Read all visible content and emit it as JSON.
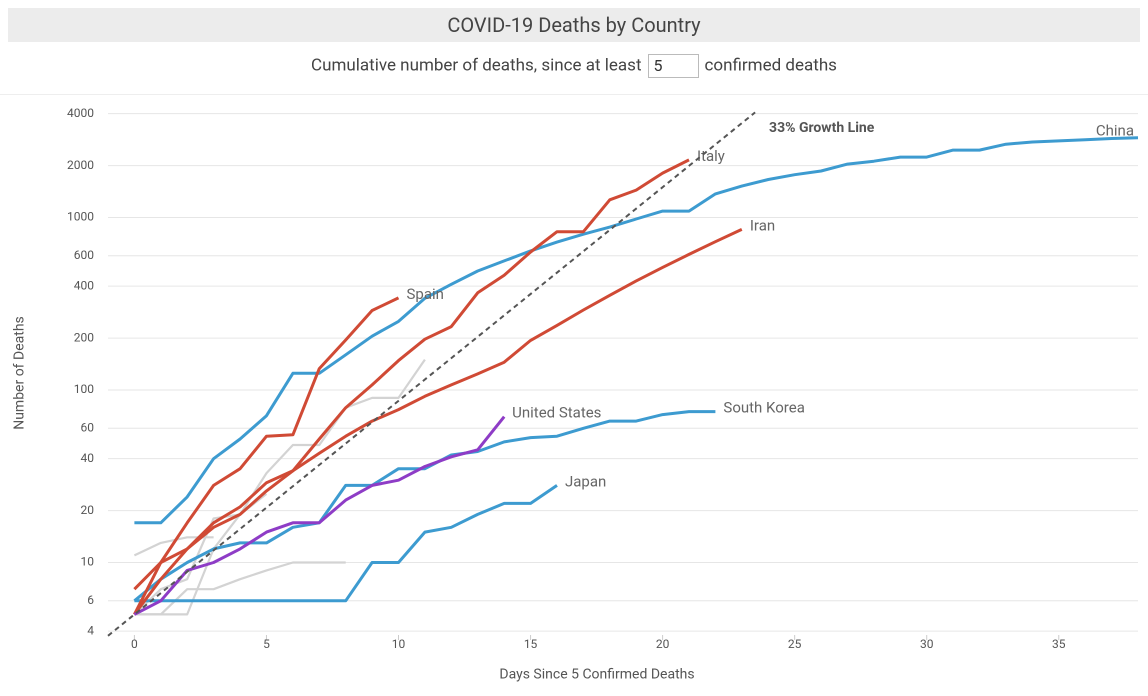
{
  "chart_data": {
    "type": "line",
    "title": "COVID-19 Deaths by Country",
    "subtitle_prefix": "Cumulative number of deaths, since at least",
    "threshold": 5,
    "subtitle_suffix": "confirmed deaths",
    "x_label": "Days Since 5 Confirmed Deaths",
    "y_label": "Number of Deaths",
    "log_y": true,
    "grid": true,
    "xlim": [
      -1,
      38
    ],
    "xticks": [
      0,
      5,
      10,
      15,
      20,
      25,
      30,
      35
    ],
    "ylim": [
      3.8,
      4200
    ],
    "yticks": [
      4,
      6,
      10,
      20,
      40,
      60,
      100,
      200,
      400,
      600,
      1000,
      2000,
      4000
    ],
    "reference_line": {
      "label": "33% Growth Line",
      "color": "#555555",
      "x": [
        -1,
        23.5
      ],
      "values": [
        3.76,
        4070
      ]
    },
    "series": [
      {
        "color": "#d3d3d3",
        "x": [
          0,
          1,
          2,
          3
        ],
        "values": [
          11,
          13,
          14,
          14
        ]
      },
      {
        "color": "#d3d3d3",
        "x": [
          0,
          1,
          2,
          3,
          4,
          5,
          6,
          7,
          8
        ],
        "values": [
          5,
          5,
          7,
          7,
          8,
          9,
          10,
          10,
          10
        ]
      },
      {
        "color": "#d3d3d3",
        "x": [
          0,
          1,
          2,
          3,
          4,
          5,
          6,
          7,
          8,
          9,
          10,
          11
        ],
        "values": [
          5,
          7,
          8,
          18,
          19,
          33,
          48,
          48,
          79,
          90,
          90,
          150
        ]
      },
      {
        "color": "#d3d3d3",
        "x": [
          0,
          1,
          2,
          3,
          4,
          5
        ],
        "values": [
          5,
          5,
          5,
          12,
          19,
          25
        ]
      },
      {
        "name": "China",
        "color": "#3d9bd0",
        "x": [
          0,
          1,
          2,
          3,
          4,
          5,
          6,
          7,
          8,
          9,
          10,
          11,
          12,
          13,
          14,
          15,
          16,
          17,
          18,
          19,
          20,
          21,
          22,
          23,
          24,
          25,
          26,
          27,
          28,
          29,
          30,
          31,
          32,
          33,
          34,
          35,
          36,
          37,
          38
        ],
        "values": [
          17,
          17,
          24,
          40,
          52,
          71,
          125,
          125,
          160,
          205,
          250,
          340,
          410,
          490,
          560,
          640,
          720,
          800,
          880,
          980,
          1090,
          1090,
          1370,
          1520,
          1660,
          1770,
          1860,
          2040,
          2120,
          2240,
          2240,
          2460,
          2460,
          2660,
          2740,
          2780,
          2820,
          2870,
          2900
        ]
      },
      {
        "name": "South Korea",
        "color": "#3d9bd0",
        "x": [
          0,
          1,
          2,
          3,
          4,
          5,
          6,
          7,
          8,
          9,
          10,
          11,
          12,
          13,
          14,
          15,
          16,
          17,
          18,
          19,
          20,
          21,
          22
        ],
        "values": [
          6,
          8,
          10,
          12,
          13,
          13,
          16,
          17,
          28,
          28,
          35,
          35,
          42,
          44,
          50,
          53,
          54,
          60,
          66,
          66,
          72,
          75,
          75
        ]
      },
      {
        "name": "Japan",
        "color": "#3d9bd0",
        "x": [
          0,
          1,
          2,
          3,
          4,
          5,
          6,
          7,
          8,
          9,
          10,
          11,
          12,
          13,
          14,
          15,
          16
        ],
        "values": [
          6,
          6,
          6,
          6,
          6,
          6,
          6,
          6,
          6,
          10,
          10,
          15,
          16,
          19,
          22,
          22,
          28
        ]
      },
      {
        "name": "Iran",
        "color": "#d04a35",
        "x": [
          0,
          1,
          2,
          3,
          4,
          5,
          6,
          7,
          8,
          9,
          10,
          11,
          12,
          13,
          14,
          15,
          16,
          17,
          18,
          19,
          20,
          21,
          22,
          23
        ],
        "values": [
          5,
          8,
          12,
          16,
          19,
          26,
          34,
          43,
          54,
          66,
          77,
          92,
          107,
          124,
          145,
          194,
          237,
          291,
          354,
          429,
          514,
          611,
          724,
          853
        ]
      },
      {
        "name": "Italy",
        "color": "#d04a35",
        "x": [
          0,
          1,
          2,
          3,
          4,
          5,
          6,
          7,
          8,
          9,
          10,
          11,
          12,
          13,
          14,
          15,
          16,
          17,
          18,
          19,
          20,
          21
        ],
        "values": [
          7,
          10,
          12,
          17,
          21,
          29,
          34,
          52,
          79,
          107,
          148,
          197,
          233,
          366,
          463,
          631,
          827,
          827,
          1266,
          1441,
          1809,
          2158
        ]
      },
      {
        "name": "Spain",
        "color": "#d04a35",
        "x": [
          0,
          1,
          2,
          3,
          4,
          5,
          6,
          7,
          8,
          9,
          10
        ],
        "values": [
          5,
          10,
          17,
          28,
          35,
          54,
          55,
          133,
          195,
          289,
          342
        ]
      },
      {
        "name": "United States",
        "color": "#8e3cc6",
        "x": [
          0,
          1,
          2,
          3,
          4,
          5,
          6,
          7,
          8,
          9,
          10,
          11,
          12,
          13,
          14
        ],
        "values": [
          5,
          6,
          9,
          10,
          12,
          15,
          17,
          17,
          23,
          28,
          30,
          36,
          41,
          45,
          70
        ]
      }
    ]
  }
}
